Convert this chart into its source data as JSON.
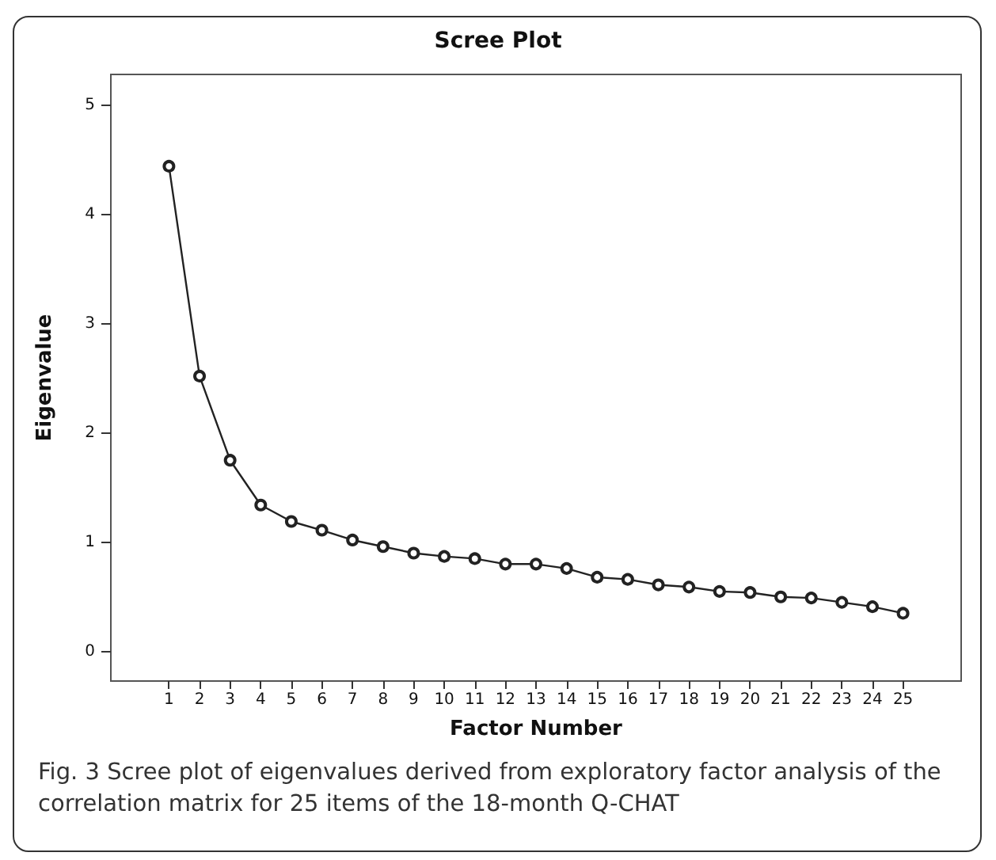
{
  "chart_data": {
    "type": "line",
    "title": "Scree Plot",
    "xlabel": "Factor Number",
    "ylabel": "Eigenvalue",
    "annotations": [
      "Fig. 3 Scree plot of eigenvalues derived from exploratory factor analysis of the correlation matrix for 25 items of the 18-month Q-CHAT"
    ],
    "x": [
      1,
      2,
      3,
      4,
      5,
      6,
      7,
      8,
      9,
      10,
      11,
      12,
      13,
      14,
      15,
      16,
      17,
      18,
      19,
      20,
      21,
      22,
      23,
      24,
      25
    ],
    "series": [
      {
        "color": "#222222",
        "values": [
          4.44,
          2.52,
          1.75,
          1.34,
          1.19,
          1.11,
          1.02,
          0.96,
          0.9,
          0.87,
          0.85,
          0.8,
          0.8,
          0.76,
          0.68,
          0.66,
          0.61,
          0.59,
          0.55,
          0.54,
          0.5,
          0.49,
          0.45,
          0.41,
          0.35
        ]
      }
    ],
    "xlim": [
      -0.9,
      26.9
    ],
    "xticks": [
      1,
      2,
      3,
      4,
      5,
      6,
      7,
      8,
      9,
      10,
      11,
      12,
      13,
      14,
      15,
      16,
      17,
      18,
      19,
      20,
      21,
      22,
      23,
      24,
      25
    ],
    "ylim": [
      -0.27,
      5.28
    ],
    "yticks": [
      0,
      1,
      2,
      3,
      4,
      5
    ],
    "marker": "circle",
    "line_style": "solid"
  }
}
